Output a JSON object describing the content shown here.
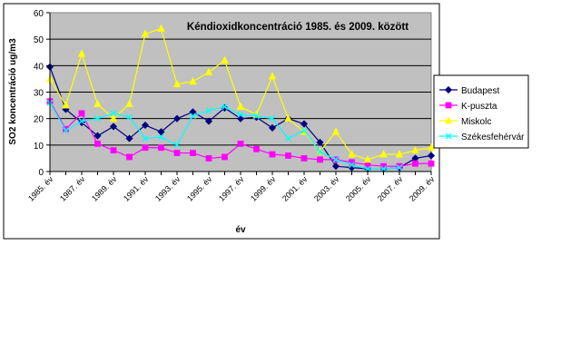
{
  "chart_data": {
    "type": "line",
    "title": "Kéndioxidkoncentráció 1985. és 2009. között",
    "xlabel": "év",
    "ylabel": "SO2 koncentráció ug/m3",
    "ylim": [
      0,
      60
    ],
    "yticks": [
      0,
      10,
      20,
      30,
      40,
      50,
      60
    ],
    "grid": true,
    "legend_position": "right",
    "x": [
      "1985. év",
      "1986. év",
      "1987. év",
      "1988. év",
      "1989. év",
      "1990. év",
      "1991. év",
      "1992. év",
      "1993. év",
      "1994. év",
      "1995. év",
      "1996. év",
      "1997. év",
      "1998. év",
      "1999. év",
      "2000. év",
      "2001. év",
      "2002. év",
      "2003. év",
      "2004. év",
      "2005. év",
      "2006. év",
      "2007. év",
      "2008. év",
      "2009. év"
    ],
    "xtick_labels": [
      "1985. év",
      "1987. év",
      "1989. év",
      "1991. év",
      "1993. év",
      "1995. év",
      "1997. év",
      "1999. év",
      "2001. év",
      "2003. év",
      "2005. év",
      "2007. év",
      "2009. év"
    ],
    "series": [
      {
        "name": "Budapest",
        "color": "#000080",
        "marker": "diamond",
        "values": [
          39.5,
          23.5,
          18.5,
          13.5,
          17,
          12.5,
          17.5,
          15,
          20,
          22.5,
          19,
          24,
          20,
          20.5,
          16.5,
          20,
          18,
          11,
          2,
          1.5,
          1,
          1,
          1.5,
          5,
          6
        ]
      },
      {
        "name": "K-puszta",
        "color": "#ff00ff",
        "marker": "square",
        "values": [
          26.5,
          16,
          22,
          10.5,
          8,
          5.5,
          9,
          9,
          7,
          7,
          5,
          5.5,
          10.5,
          8.5,
          6.5,
          6,
          5,
          4.5,
          4.5,
          3.5,
          2.5,
          2,
          2,
          3,
          3
        ]
      },
      {
        "name": "Miskolc",
        "color": "#ffff00",
        "marker": "triangle",
        "values": [
          35,
          25,
          44.5,
          25.5,
          20,
          25.5,
          52,
          54,
          33,
          34,
          37.5,
          42,
          24.5,
          21.5,
          36,
          20,
          15,
          7.5,
          15,
          6.5,
          4.5,
          6.5,
          6.5,
          8,
          9
        ]
      },
      {
        "name": "Székesfehérvár",
        "color": "#00ffff",
        "marker": "x",
        "values": [
          26,
          15.5,
          19,
          20,
          22,
          20.5,
          12.5,
          13,
          10,
          21,
          23,
          24.5,
          21.5,
          21,
          20,
          12.5,
          15.5,
          7.5,
          4.5,
          2.5,
          1,
          1,
          1.5,
          null,
          null
        ]
      }
    ]
  }
}
